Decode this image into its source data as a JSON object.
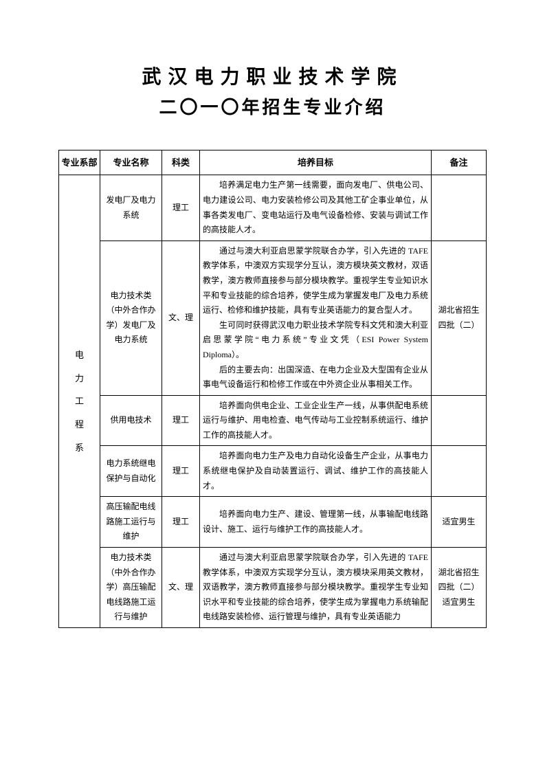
{
  "title_line1": "武汉电力职业技术学院",
  "title_line2": "二〇一〇年招生专业介绍",
  "headers": {
    "dept": "专业系部",
    "major": "专业名称",
    "category": "科类",
    "goal": "培养目标",
    "note": "备注"
  },
  "dept_name": "电\n力\n工\n程\n系",
  "rows": [
    {
      "major": "发电厂及电力系统",
      "category": "理工",
      "goal": "培养满足电力生产第一线需要，面向发电厂、供电公司、电力建设公司、电力安装检修公司及其他工矿企事业单位，从事各类发电厂、变电站运行及电气设备检修、安装与调试工作的高技能人才。",
      "note": ""
    },
    {
      "major": "电力技术类（中外合作办学）发电厂及电力系统",
      "category": "文、理",
      "goal_p1": "通过与澳大利亚启思蒙学院联合办学，引入先进的 TAFE 教学体系，中澳双方实现学分互认，澳方模块英文教材，双语教学，澳方教师直接参与部分模块教学。重视学生专业知识水平和专业技能的综合培养，使学生成为掌握发电厂及电力系统运行、检修和维护技能，具有专业英语能力的复合型人才。",
      "goal_p2": "生可同时获得武汉电力职业技术学院专科文凭和澳大利亚启思蒙学院“电力系统”专业文凭（ESI Power System Diploma）。",
      "goal_p3": "后的主要去向：出国深造、在电力企业及大型国有企业从事电气设备运行和检修工作或在中外资企业从事相关工作。",
      "note": "湖北省招生四批（二）"
    },
    {
      "major": "供用电技术",
      "category": "理工",
      "goal": "培养面向供电企业、工业企业生产一线，从事供配电系统运行与维护、用电检查、电气传动与工业控制系统运行、维护工作的高技能人才。",
      "note": ""
    },
    {
      "major": "电力系统继电保护与自动化",
      "category": "理工",
      "goal": "培养面向电力生产及电力自动化设备生产企业，从事电力系统继电保护及自动装置运行、调试、维护工作的高技能人才。",
      "note": ""
    },
    {
      "major": "高压输配电线路施工运行与维护",
      "category": "理工",
      "goal": "培养面向电力生产、建设、管理第一线，从事输配电线路设计、施工、运行与维护工作的高技能人才。",
      "note": "适宜男生"
    },
    {
      "major": "电力技术类（中外合作办学）高压输配电线路施工运行与维护",
      "category": "文、理",
      "goal": "通过与澳大利亚启思蒙学院联合办学，引入先进的 TAFE 教学体系，中澳双方实现学分互认，澳方模块采用英文教材，双语教学，澳方教师直接参与部分模块教学。重视学生专业知识水平和专业技能的综合培养，使学生成为掌握电力系统输配电线路安装检修、运行管理与维护，具有专业英语能力",
      "note": "湖北省招生四批（二）适宜男生"
    }
  ]
}
